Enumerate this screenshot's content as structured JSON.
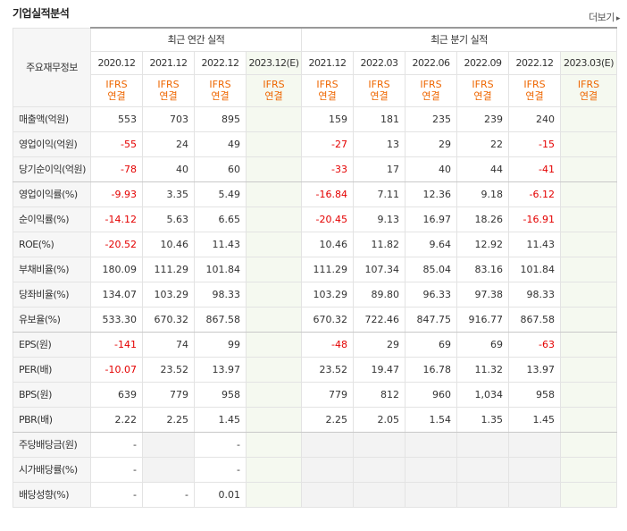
{
  "header": {
    "title": "기업실적분석",
    "more_label": "더보기"
  },
  "table": {
    "corner_label": "주요재무정보",
    "annual_group": "최근 연간 실적",
    "quarter_group": "최근 분기 실적",
    "annual_periods": [
      "2020.12",
      "2021.12",
      "2022.12",
      "2023.12(E)"
    ],
    "quarter_periods": [
      "2021.12",
      "2022.03",
      "2022.06",
      "2022.09",
      "2022.12",
      "2023.03(E)"
    ],
    "basis_label_1": "IFRS",
    "basis_label_2": "연결",
    "rows": [
      {
        "label": "매출액(억원)",
        "a": [
          "553",
          "703",
          "895",
          ""
        ],
        "q": [
          "159",
          "181",
          "235",
          "239",
          "240",
          ""
        ]
      },
      {
        "label": "영업이익(억원)",
        "a": [
          "-55",
          "24",
          "49",
          ""
        ],
        "q": [
          "-27",
          "13",
          "29",
          "22",
          "-15",
          ""
        ]
      },
      {
        "label": "당기순이익(억원)",
        "a": [
          "-78",
          "40",
          "60",
          ""
        ],
        "q": [
          "-33",
          "17",
          "40",
          "44",
          "-41",
          ""
        ]
      },
      {
        "label": "영업이익률(%)",
        "a": [
          "-9.93",
          "3.35",
          "5.49",
          ""
        ],
        "q": [
          "-16.84",
          "7.11",
          "12.36",
          "9.18",
          "-6.12",
          ""
        ]
      },
      {
        "label": "순이익률(%)",
        "a": [
          "-14.12",
          "5.63",
          "6.65",
          ""
        ],
        "q": [
          "-20.45",
          "9.13",
          "16.97",
          "18.26",
          "-16.91",
          ""
        ]
      },
      {
        "label": "ROE(%)",
        "a": [
          "-20.52",
          "10.46",
          "11.43",
          ""
        ],
        "q": [
          "10.46",
          "11.82",
          "9.64",
          "12.92",
          "11.43",
          ""
        ]
      },
      {
        "label": "부채비율(%)",
        "a": [
          "180.09",
          "111.29",
          "101.84",
          ""
        ],
        "q": [
          "111.29",
          "107.34",
          "85.04",
          "83.16",
          "101.84",
          ""
        ]
      },
      {
        "label": "당좌비율(%)",
        "a": [
          "134.07",
          "103.29",
          "98.33",
          ""
        ],
        "q": [
          "103.29",
          "89.80",
          "96.33",
          "97.38",
          "98.33",
          ""
        ]
      },
      {
        "label": "유보율(%)",
        "a": [
          "533.30",
          "670.32",
          "867.58",
          ""
        ],
        "q": [
          "670.32",
          "722.46",
          "847.75",
          "916.77",
          "867.58",
          ""
        ]
      },
      {
        "label": "EPS(원)",
        "a": [
          "-141",
          "74",
          "99",
          ""
        ],
        "q": [
          "-48",
          "29",
          "69",
          "69",
          "-63",
          ""
        ]
      },
      {
        "label": "PER(배)",
        "a": [
          "-10.07",
          "23.52",
          "13.97",
          ""
        ],
        "q": [
          "23.52",
          "19.47",
          "16.78",
          "11.32",
          "13.97",
          ""
        ]
      },
      {
        "label": "BPS(원)",
        "a": [
          "639",
          "779",
          "958",
          ""
        ],
        "q": [
          "779",
          "812",
          "960",
          "1,034",
          "958",
          ""
        ]
      },
      {
        "label": "PBR(배)",
        "a": [
          "2.22",
          "2.25",
          "1.45",
          ""
        ],
        "q": [
          "2.25",
          "2.05",
          "1.54",
          "1.35",
          "1.45",
          ""
        ]
      },
      {
        "label": "주당배당금(원)",
        "a": [
          "-",
          "",
          "-",
          ""
        ],
        "q": [
          "",
          "",
          "",
          "",
          "",
          ""
        ]
      },
      {
        "label": "시가배당률(%)",
        "a": [
          "-",
          "",
          "-",
          ""
        ],
        "q": [
          "",
          "",
          "",
          "",
          "",
          ""
        ]
      },
      {
        "label": "배당성향(%)",
        "a": [
          "-",
          "-",
          "0.01",
          ""
        ],
        "q": [
          "",
          "",
          "",
          "",
          "",
          ""
        ]
      }
    ]
  },
  "colors": {
    "negative": "#e40000",
    "ifrs": "#ee6600",
    "estimate_bg": "#f5f9f0"
  }
}
